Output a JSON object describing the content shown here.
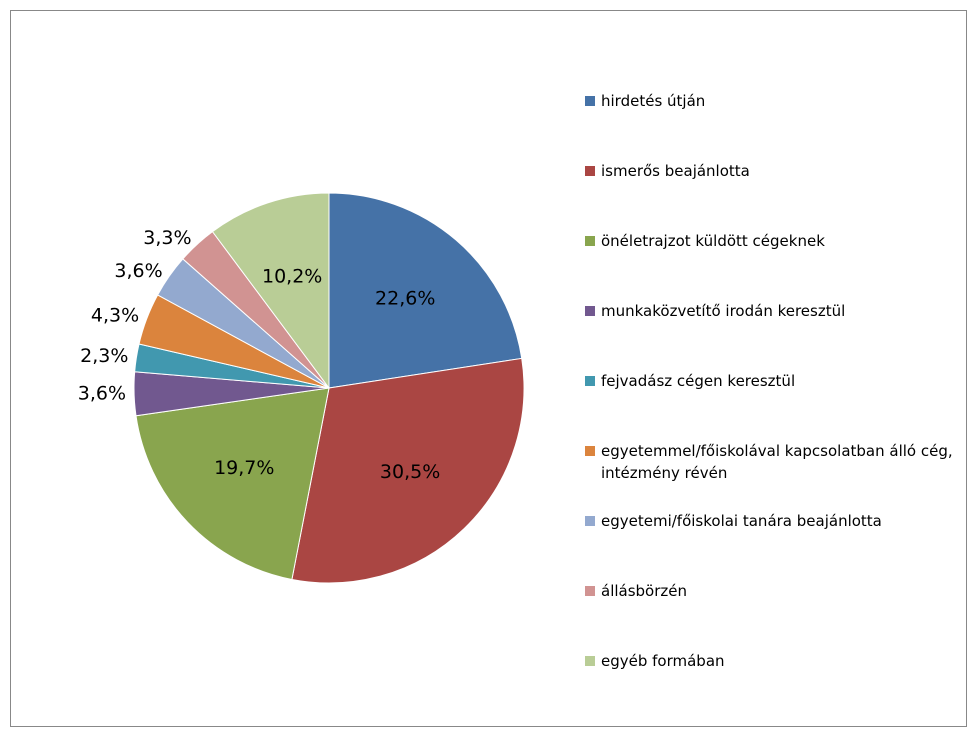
{
  "chart_data": {
    "type": "pie",
    "categories": [
      "hirdetés útján",
      "ismerős beajánlotta",
      "önéletrajzot küldött cégeknek",
      "munkaközvetítő irodán keresztül",
      "fejvadász cégen keresztül",
      "egyetemmel/főiskolával kapcsolatban álló cég, intézmény révén",
      "egyetemi/főiskolai tanára beajánlotta",
      "állásbörzén",
      "egyéb formában"
    ],
    "values": [
      22.6,
      30.5,
      19.7,
      3.6,
      2.3,
      4.3,
      3.6,
      3.3,
      10.2
    ],
    "value_labels": [
      "22,6%",
      "30,5%",
      "19,7%",
      "3,6%",
      "2,3%",
      "4,3%",
      "3,6%",
      "3,3%",
      "10,2%"
    ],
    "colors": [
      "#4572a7",
      "#aa4643",
      "#89a54e",
      "#71588f",
      "#4198af",
      "#db843d",
      "#93a9cf",
      "#d19392",
      "#b9cd96"
    ],
    "legend": "right"
  }
}
